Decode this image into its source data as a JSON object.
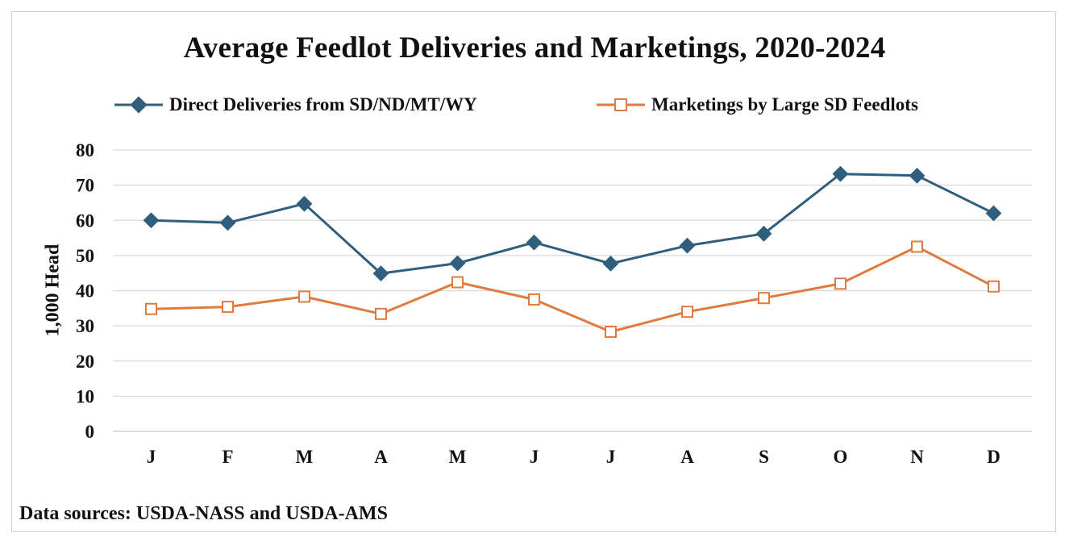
{
  "chart_data": {
    "type": "line",
    "title": "Average Feedlot Deliveries and Marketings, 2020-2024",
    "ylabel": "1,000 Head",
    "xlabel": "",
    "categories": [
      "J",
      "F",
      "M",
      "A",
      "M",
      "J",
      "J",
      "A",
      "S",
      "O",
      "N",
      "D"
    ],
    "ylim": [
      0,
      80
    ],
    "yticks": [
      "0",
      "10",
      "20",
      "30",
      "40",
      "50",
      "60",
      "70",
      "80"
    ],
    "grid": true,
    "legend_position": "top",
    "series": [
      {
        "name": "Direct Deliveries from SD/ND/MT/WY",
        "color": "#2f5f7d",
        "marker": "diamond",
        "values": [
          60,
          59.3,
          64.7,
          44.9,
          47.8,
          53.7,
          47.7,
          52.8,
          56.2,
          73.2,
          72.7,
          62.0
        ]
      },
      {
        "name": "Marketings by Large SD Feedlots",
        "color": "#e07b40",
        "marker": "square-open",
        "values": [
          34.8,
          35.4,
          38.3,
          33.4,
          42.4,
          37.5,
          28.3,
          34.0,
          37.9,
          42.0,
          52.5,
          41.2
        ]
      }
    ]
  },
  "source_note": "Data sources: USDA-NASS and USDA-AMS"
}
